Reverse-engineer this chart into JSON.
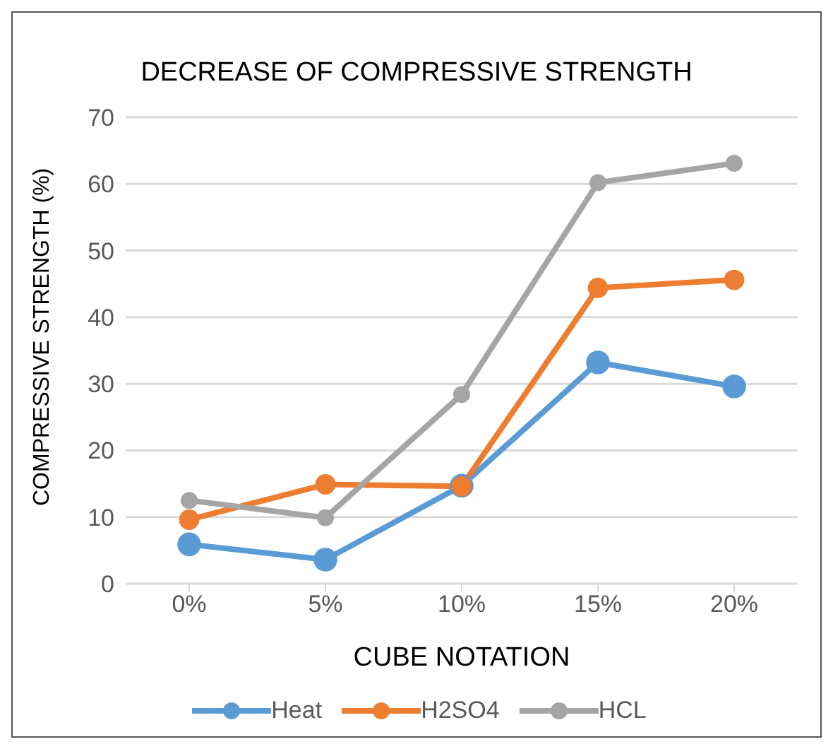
{
  "chart_data": {
    "type": "line",
    "title": "DECREASE OF COMPRESSIVE STRENGTH",
    "xlabel": "CUBE NOTATION",
    "ylabel": "COMPRESSIVE STRENGTH (%)",
    "categories": [
      "0%",
      "5%",
      "10%",
      "15%",
      "20%"
    ],
    "series": [
      {
        "name": "Heat",
        "color": "#5b9bd5",
        "values": [
          5.9,
          3.6,
          14.7,
          33.2,
          29.6
        ]
      },
      {
        "name": "H2SO4",
        "color": "#ed7d31",
        "values": [
          9.6,
          14.9,
          14.6,
          44.4,
          45.6
        ]
      },
      {
        "name": "HCL",
        "color": "#a5a5a5",
        "values": [
          12.5,
          9.9,
          28.4,
          60.2,
          63.1
        ]
      }
    ],
    "ylim": [
      0,
      70
    ],
    "yticks": [
      0,
      10,
      20,
      30,
      40,
      50,
      60,
      70
    ],
    "grid": "y",
    "legend": "bottom",
    "marker": "circle",
    "line_style": "solid"
  }
}
